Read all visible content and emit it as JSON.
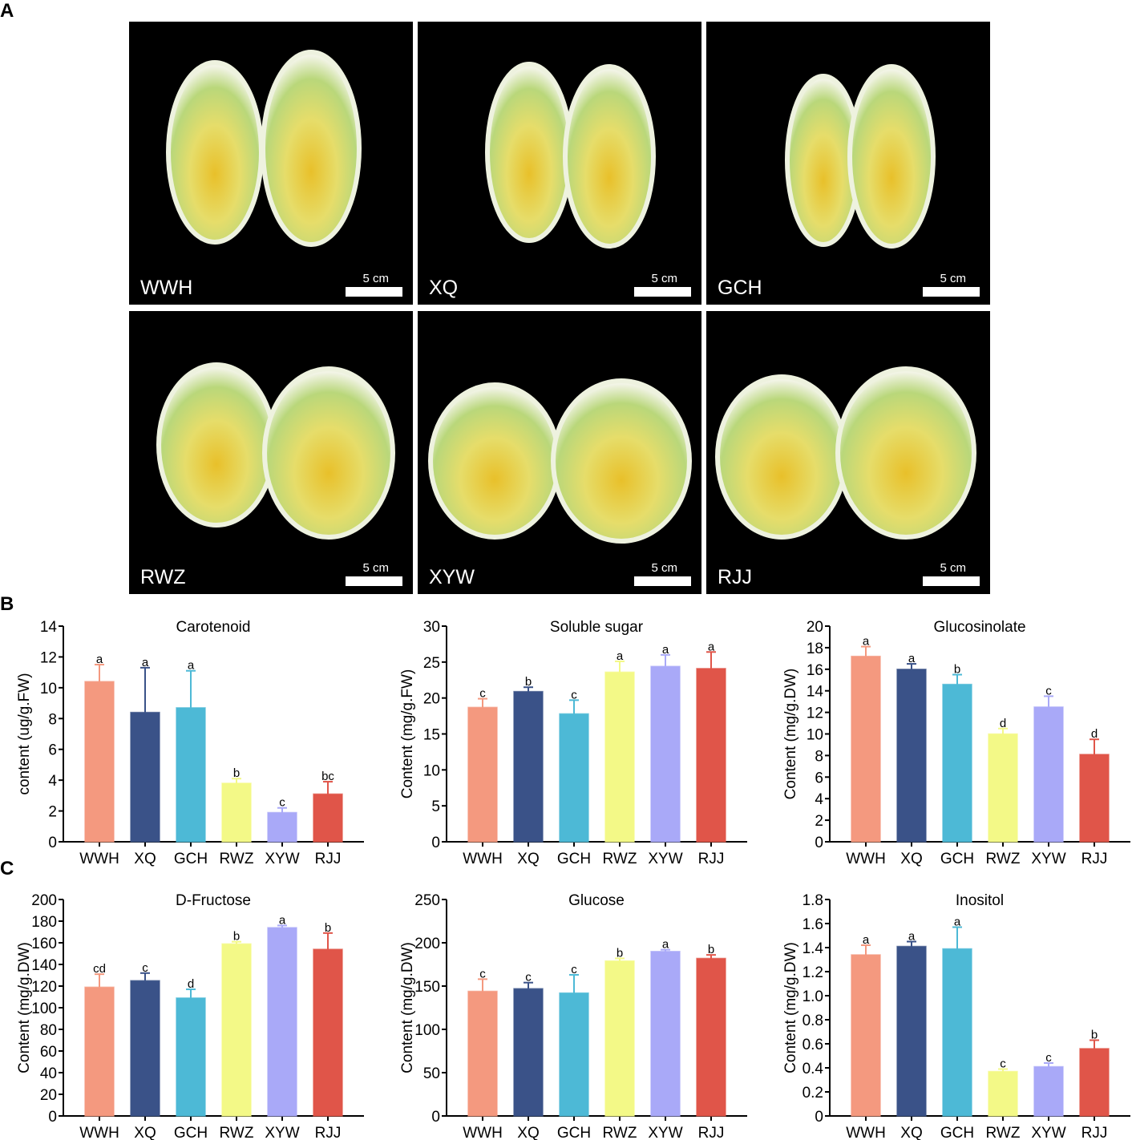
{
  "panel_letters": {
    "a": "A",
    "b": "B",
    "c": "C"
  },
  "photos": [
    {
      "label": "WWH",
      "scale": "5 cm"
    },
    {
      "label": "XQ",
      "scale": "5 cm"
    },
    {
      "label": "GCH",
      "scale": "5 cm"
    },
    {
      "label": "RWZ",
      "scale": "5 cm"
    },
    {
      "label": "XYW",
      "scale": "5 cm"
    },
    {
      "label": "RJJ",
      "scale": "5 cm"
    }
  ],
  "colors": {
    "WWH": "#F4997F",
    "XQ": "#3A5288",
    "GCH": "#4DB9D6",
    "RWZ": "#F3F987",
    "XYW": "#A9A9F8",
    "RJJ": "#E05549"
  },
  "chart_data": [
    {
      "type": "bar",
      "title": "Carotenoid",
      "ylabel": "content (ug/g.FW)",
      "categories": [
        "WWH",
        "XQ",
        "GCH",
        "RWZ",
        "XYW",
        "RJJ"
      ],
      "values": [
        10.4,
        8.4,
        8.7,
        3.8,
        1.9,
        3.1
      ],
      "errors": [
        1.1,
        2.9,
        2.4,
        0.3,
        0.3,
        0.8
      ],
      "letters": [
        "a",
        "a",
        "a",
        "b",
        "c",
        "bc"
      ],
      "ylim": [
        0,
        14
      ],
      "ticks": [
        0,
        2,
        4,
        6,
        8,
        10,
        12,
        14
      ]
    },
    {
      "type": "bar",
      "title": "Soluble sugar",
      "ylabel": "Content (mg/g.FW)",
      "categories": [
        "WWH",
        "XQ",
        "GCH",
        "RWZ",
        "XYW",
        "RJJ"
      ],
      "values": [
        18.7,
        20.9,
        17.8,
        23.6,
        24.4,
        24.1
      ],
      "errors": [
        1.2,
        0.6,
        1.9,
        1.5,
        1.6,
        2.3
      ],
      "letters": [
        "c",
        "b",
        "c",
        "a",
        "a",
        "a"
      ],
      "ylim": [
        0,
        30
      ],
      "ticks": [
        0,
        5,
        10,
        15,
        20,
        25,
        30
      ]
    },
    {
      "type": "bar",
      "title": "Glucosinolate",
      "ylabel": "Content (mg/g.DW)",
      "categories": [
        "WWH",
        "XQ",
        "GCH",
        "RWZ",
        "XYW",
        "RJJ"
      ],
      "values": [
        17.2,
        16.0,
        14.6,
        10.0,
        12.5,
        8.1
      ],
      "errors": [
        0.9,
        0.5,
        0.9,
        0.5,
        1.0,
        1.4
      ],
      "letters": [
        "a",
        "a",
        "b",
        "d",
        "c",
        "d"
      ],
      "ylim": [
        0,
        20
      ],
      "ticks": [
        0,
        2,
        4,
        6,
        8,
        10,
        12,
        14,
        16,
        18,
        20
      ]
    },
    {
      "type": "bar",
      "title": "D-Fructose",
      "ylabel": "Content (mg/g.DW)",
      "categories": [
        "WWH",
        "XQ",
        "GCH",
        "RWZ",
        "XYW",
        "RJJ"
      ],
      "values": [
        119,
        125,
        109,
        159,
        174,
        154
      ],
      "errors": [
        12,
        7,
        8,
        2,
        2,
        15
      ],
      "letters": [
        "cd",
        "c",
        "d",
        "b",
        "a",
        "b"
      ],
      "ylim": [
        0,
        200
      ],
      "ticks": [
        0,
        20,
        40,
        60,
        80,
        100,
        120,
        140,
        160,
        180,
        200
      ]
    },
    {
      "type": "bar",
      "title": "Glucose",
      "ylabel": "Content (mg/g.DW)",
      "categories": [
        "WWH",
        "XQ",
        "GCH",
        "RWZ",
        "XYW",
        "RJJ"
      ],
      "values": [
        144,
        147,
        142,
        179,
        190,
        182
      ],
      "errors": [
        14,
        7,
        21,
        3,
        2,
        4
      ],
      "letters": [
        "c",
        "c",
        "c",
        "b",
        "a",
        "b"
      ],
      "ylim": [
        0,
        250
      ],
      "ticks": [
        0,
        50,
        100,
        150,
        200,
        250
      ]
    },
    {
      "type": "bar",
      "title": "Inositol",
      "ylabel": "Content (mg/g.DW)",
      "categories": [
        "WWH",
        "XQ",
        "GCH",
        "RWZ",
        "XYW",
        "RJJ"
      ],
      "values": [
        1.34,
        1.41,
        1.39,
        0.37,
        0.41,
        0.56
      ],
      "errors": [
        0.08,
        0.04,
        0.18,
        0.02,
        0.03,
        0.07
      ],
      "letters": [
        "a",
        "a",
        "a",
        "c",
        "c",
        "b"
      ],
      "ylim": [
        0,
        1.8
      ],
      "ticks": [
        0,
        0.2,
        0.4,
        0.6,
        0.8,
        1.0,
        1.2,
        1.4,
        1.6,
        1.8
      ]
    }
  ]
}
